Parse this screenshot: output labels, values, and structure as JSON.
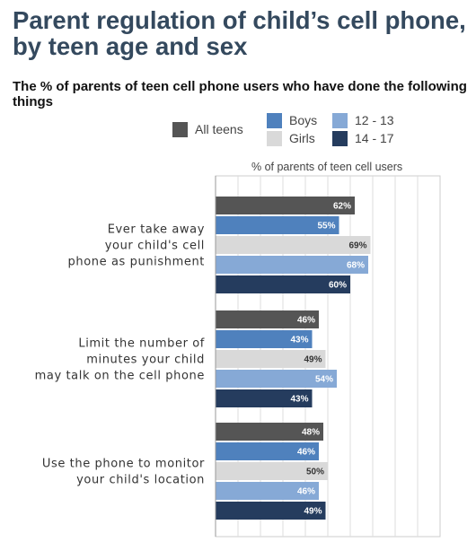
{
  "header": {
    "title": "Parent regulation of child’s cell phone, by teen age and sex",
    "subtitle": "The % of parents of teen cell phone users who have done the following things"
  },
  "chart_data": {
    "type": "bar",
    "orientation": "horizontal",
    "xlabel": "% of parents of teen cell users",
    "xlim": [
      0,
      100
    ],
    "grid": true,
    "legend_position": "top",
    "categories": [
      [
        "Ever take away",
        "your child's cell",
        "phone as punishment"
      ],
      [
        "Limit the number of",
        "minutes your child",
        "may talk on the cell phone"
      ],
      [
        "Use the phone to monitor",
        "your child's location"
      ]
    ],
    "series": [
      {
        "name": "All teens",
        "color": "#555555",
        "label_color": "#ffffff",
        "values": [
          62,
          46,
          48
        ],
        "labels": [
          "62%",
          "46%",
          "48%"
        ]
      },
      {
        "name": "Boys",
        "color": "#4f81bd",
        "label_color": "#ffffff",
        "values": [
          55,
          43,
          46
        ],
        "labels": [
          "55%",
          "43%",
          "46%"
        ]
      },
      {
        "name": "Girls",
        "color": "#d9d9d9",
        "label_color": "#333333",
        "values": [
          69,
          49,
          50
        ],
        "labels": [
          "69%",
          "49%",
          "50%"
        ]
      },
      {
        "name": "12 - 13",
        "color": "#86a9d6",
        "label_color": "#ffffff",
        "values": [
          68,
          54,
          46
        ],
        "labels": [
          "68%",
          "54%",
          "46%"
        ]
      },
      {
        "name": "14 - 17",
        "color": "#253c5e",
        "label_color": "#ffffff",
        "values": [
          60,
          43,
          49
        ],
        "labels": [
          "60%",
          "43%",
          "49%"
        ]
      }
    ]
  }
}
